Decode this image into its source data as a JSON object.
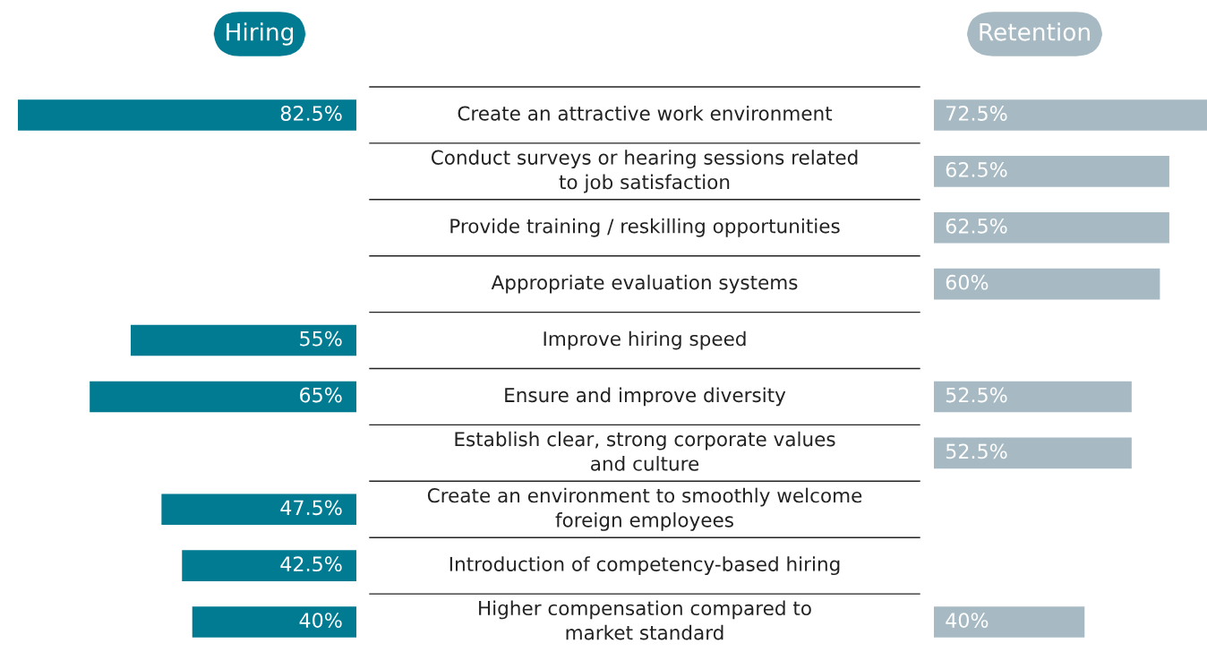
{
  "chart_data": [
    {
      "type": "bar",
      "orientation": "horizontal",
      "title": "Hiring",
      "xlim": [
        82.5,
        0
      ],
      "tick_labels": false,
      "categories": [
        "Create an attractive work environment",
        "Conduct surveys or hearing sessions related\nto job satisfaction",
        "Provide training / reskilling opportunities",
        "Appropriate evaluation systems",
        "Improve hiring speed",
        "Ensure and improve diversity",
        "Establish clear, strong corporate values\nand culture",
        "Create an environment to smoothly welcome\nforeign employees",
        "Introduction of competency-based hiring",
        "Higher compensation compared to\nmarket standard"
      ],
      "values": [
        82.5,
        null,
        null,
        null,
        55,
        65,
        null,
        47.5,
        42.5,
        40
      ],
      "value_labels": [
        "82.5%",
        null,
        null,
        null,
        "55%",
        "65%",
        null,
        "47.5%",
        "42.5%",
        "40%"
      ],
      "color": "#007b92"
    },
    {
      "type": "bar",
      "orientation": "horizontal",
      "title": "Retention",
      "xlim": [
        0,
        72.5
      ],
      "tick_labels": false,
      "categories": [
        null,
        null,
        null,
        null,
        null,
        null,
        null,
        null,
        null,
        null
      ],
      "values": [
        72.5,
        62.5,
        62.5,
        60,
        null,
        52.5,
        52.5,
        null,
        null,
        40
      ],
      "value_labels": [
        "72.5%",
        "62.5%",
        "62.5%",
        "60%",
        null,
        "52.5%",
        "52.5%",
        null,
        null,
        "40%"
      ],
      "color": "#a7bac3"
    }
  ]
}
